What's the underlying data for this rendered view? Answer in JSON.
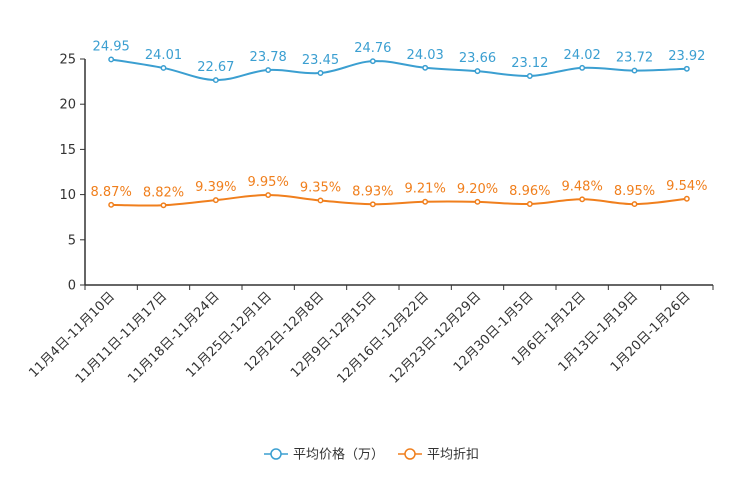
{
  "chart_data": {
    "type": "line",
    "title": "",
    "xlabel": "",
    "ylabel": "",
    "ylim": [
      0,
      25
    ],
    "yticks": [
      0,
      5,
      10,
      15,
      20,
      25
    ],
    "categories": [
      "11月4日-11月10日",
      "11月11日-11月17日",
      "11月18日-11月24日",
      "11月25日-12月1日",
      "12月2日-12月8日",
      "12月9日-12月15日",
      "12月16日-12月22日",
      "12月23日-12月29日",
      "12月30日-1月5日",
      "1月6日-1月12日",
      "1月13日-1月19日",
      "1月20日-1月26日"
    ],
    "series": [
      {
        "name": "平均价格（万）",
        "color": "#3b9fd1",
        "values": [
          24.95,
          24.01,
          22.67,
          23.78,
          23.45,
          24.76,
          24.03,
          23.66,
          23.12,
          24.02,
          23.72,
          23.92
        ],
        "labels": [
          "24.95",
          "24.01",
          "22.67",
          "23.78",
          "23.45",
          "24.76",
          "24.03",
          "23.66",
          "23.12",
          "24.02",
          "23.72",
          "23.92"
        ]
      },
      {
        "name": "平均折扣",
        "color": "#f07f1d",
        "values": [
          8.87,
          8.82,
          9.39,
          9.95,
          9.35,
          8.93,
          9.21,
          9.2,
          8.96,
          9.48,
          8.95,
          9.54
        ],
        "labels": [
          "8.87%",
          "8.82%",
          "9.39%",
          "9.95%",
          "9.35%",
          "8.93%",
          "9.21%",
          "9.20%",
          "8.96%",
          "9.48%",
          "8.95%",
          "9.54%"
        ]
      }
    ],
    "legend": "bottom-center",
    "grid": false
  }
}
